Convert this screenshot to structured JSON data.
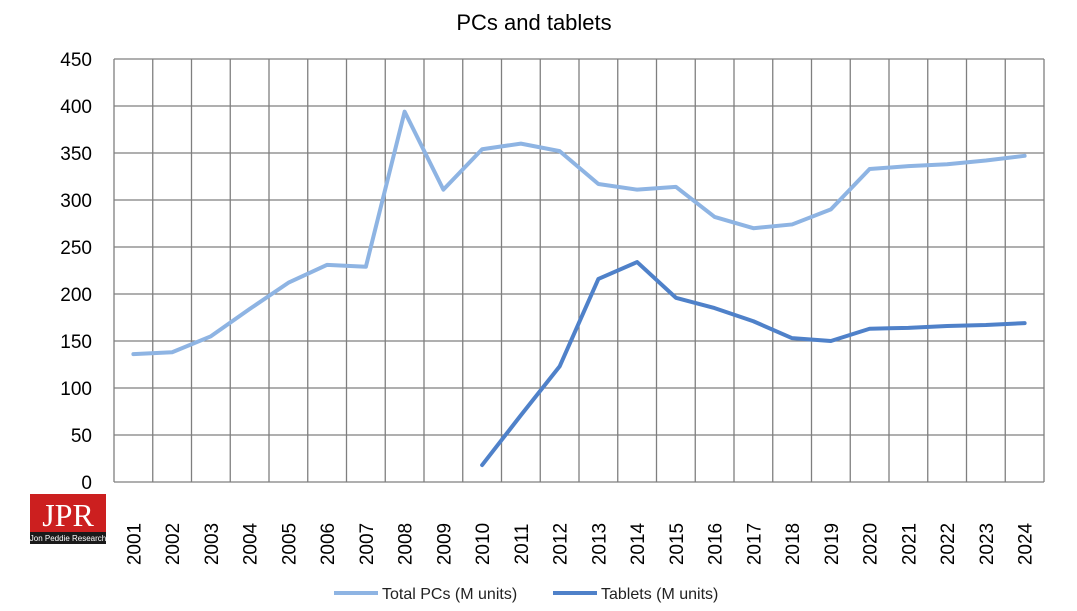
{
  "chart_data": {
    "type": "line",
    "title": "PCs and tablets",
    "xlabel": "",
    "ylabel": "",
    "ylim": [
      0,
      450
    ],
    "yticks": [
      0,
      50,
      100,
      150,
      200,
      250,
      300,
      350,
      400,
      450
    ],
    "categories": [
      "2001",
      "2002",
      "2003",
      "2004",
      "2005",
      "2006",
      "2007",
      "2008",
      "2009",
      "2010",
      "2011",
      "2012",
      "2013",
      "2014",
      "2015",
      "2016",
      "2017",
      "2018",
      "2019",
      "2020",
      "2021",
      "2022",
      "2023",
      "2024"
    ],
    "grid": true,
    "legend_position": "bottom",
    "series": [
      {
        "name": "Total PCs (M units)",
        "color": "#8eb4e3",
        "values": [
          136,
          138,
          155,
          184,
          212,
          231,
          229,
          394,
          311,
          354,
          360,
          352,
          317,
          311,
          314,
          282,
          270,
          274,
          290,
          333,
          336,
          338,
          342,
          347
        ]
      },
      {
        "name": "Tablets (M units)",
        "color": "#4f81c9",
        "values": [
          null,
          null,
          null,
          null,
          null,
          null,
          null,
          null,
          null,
          18,
          71,
          123,
          216,
          234,
          196,
          185,
          171,
          153,
          150,
          163,
          164,
          166,
          167,
          169
        ]
      }
    ]
  },
  "logo": {
    "text": "JPR",
    "subtext": "Jon Peddie Research",
    "bg_color": "#cc1f1f",
    "sub_bg_color": "#1a1a1a"
  }
}
